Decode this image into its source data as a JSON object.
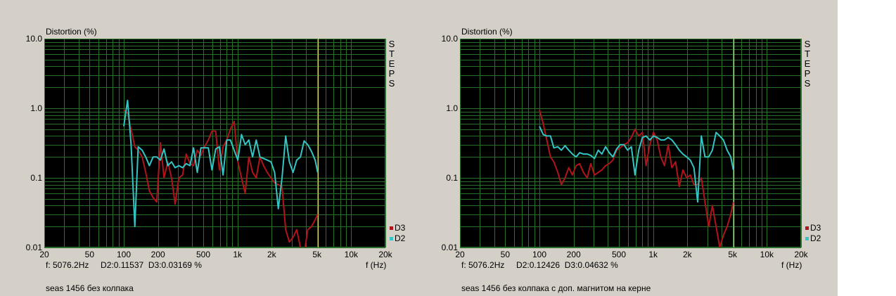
{
  "colors": {
    "panel_bg": "#d4d0c8",
    "plot_bg": "#000000",
    "grid": "#2a6f2a",
    "d3": "#b0141a",
    "d2": "#35c4c4",
    "marker": "#d4d46a"
  },
  "steps_label": "STEPS",
  "chart_data": [
    {
      "type": "line",
      "ylabel": "Distortion (%)",
      "xlabel": "f (Hz)",
      "x_scale": "log",
      "y_scale": "log",
      "xlim": [
        20,
        20000
      ],
      "ylim": [
        0.01,
        10.0
      ],
      "x_ticks": [
        "20",
        "50",
        "100",
        "200",
        "500",
        "1k",
        "2k",
        "5k",
        "10k",
        "20k"
      ],
      "y_ticks": [
        "10.0",
        "1.0",
        "0.1",
        "0.01"
      ],
      "marker_x": 5076.2,
      "readout": "f: 5076.2Hz     D2:0.11537  D3:0.03169 %",
      "caption": "seas 1456 без колпака",
      "legend": [
        "D3",
        "D2"
      ],
      "series": [
        {
          "name": "D3",
          "x": [
            100,
            108,
            116,
            125,
            134,
            145,
            156,
            168,
            181,
            195,
            210,
            226,
            244,
            263,
            283,
            305,
            329,
            354,
            382,
            411,
            443,
            477,
            514,
            554,
            597,
            643,
            693,
            747,
            805,
            867,
            934,
            1007,
            1085,
            1169,
            1259,
            1357,
            1462,
            1575,
            1697,
            1828,
            1970,
            2122,
            2287,
            2464,
            2655,
            2860,
            3082,
            3320,
            3577,
            3854,
            4153,
            4474,
            4821,
            5076
          ],
          "y": [
            0.95,
            0.85,
            0.5,
            0.28,
            0.25,
            0.2,
            0.12,
            0.065,
            0.052,
            0.045,
            0.32,
            0.1,
            0.17,
            0.1,
            0.042,
            0.1,
            0.11,
            0.22,
            0.16,
            0.15,
            0.25,
            0.21,
            0.28,
            0.35,
            0.47,
            0.47,
            0.13,
            0.28,
            0.35,
            0.5,
            0.65,
            0.17,
            0.1,
            0.06,
            0.2,
            0.12,
            0.1,
            0.2,
            0.15,
            0.12,
            0.1,
            0.085,
            0.08,
            0.075,
            0.018,
            0.012,
            0.014,
            0.018,
            0.01,
            0.008,
            0.018,
            0.02,
            0.025,
            0.03
          ]
        },
        {
          "name": "D2",
          "x": [
            100,
            108,
            116,
            125,
            134,
            145,
            156,
            168,
            181,
            195,
            210,
            226,
            244,
            263,
            283,
            305,
            329,
            354,
            382,
            411,
            443,
            477,
            514,
            554,
            597,
            643,
            693,
            747,
            805,
            867,
            934,
            1007,
            1085,
            1169,
            1259,
            1357,
            1462,
            1575,
            1697,
            1828,
            1970,
            2122,
            2287,
            2464,
            2655,
            2860,
            3082,
            3320,
            3577,
            3854,
            4153,
            4474,
            4821,
            5076
          ],
          "y": [
            0.55,
            1.3,
            0.3,
            0.02,
            0.28,
            0.25,
            0.2,
            0.15,
            0.2,
            0.2,
            0.18,
            0.26,
            0.15,
            0.17,
            0.14,
            0.15,
            0.14,
            0.16,
            0.15,
            0.27,
            0.12,
            0.27,
            0.27,
            0.27,
            0.13,
            0.26,
            0.28,
            0.11,
            0.35,
            0.35,
            0.25,
            0.18,
            0.42,
            0.3,
            0.35,
            0.2,
            0.35,
            0.2,
            0.19,
            0.18,
            0.17,
            0.12,
            0.036,
            0.1,
            0.4,
            0.17,
            0.12,
            0.18,
            0.2,
            0.34,
            0.3,
            0.24,
            0.18,
            0.12
          ]
        }
      ]
    },
    {
      "type": "line",
      "ylabel": "Distortion (%)",
      "xlabel": "f (Hz)",
      "x_scale": "log",
      "y_scale": "log",
      "xlim": [
        20,
        20000
      ],
      "ylim": [
        0.01,
        10.0
      ],
      "x_ticks": [
        "20",
        "50",
        "100",
        "200",
        "500",
        "1k",
        "2k",
        "5k",
        "10k",
        "20k"
      ],
      "y_ticks": [
        "10.0",
        "1.0",
        "0.1",
        "0.01"
      ],
      "marker_x": 5076.2,
      "readout": "f: 5076.2Hz     D2:0.12426  D3:0.04632 %",
      "caption": "seas 1456 без колпака с доп. магнитом на керне",
      "legend": [
        "D3",
        "D2"
      ],
      "series": [
        {
          "name": "D3",
          "x": [
            100,
            108,
            116,
            125,
            134,
            145,
            156,
            168,
            181,
            195,
            210,
            226,
            244,
            263,
            283,
            305,
            329,
            354,
            382,
            411,
            443,
            477,
            514,
            554,
            597,
            643,
            693,
            747,
            805,
            867,
            934,
            1007,
            1085,
            1169,
            1259,
            1357,
            1462,
            1575,
            1697,
            1828,
            1970,
            2122,
            2287,
            2464,
            2655,
            2860,
            3082,
            3320,
            3577,
            3854,
            4153,
            4474,
            4821,
            5076
          ],
          "y": [
            0.95,
            0.6,
            0.35,
            0.2,
            0.17,
            0.12,
            0.08,
            0.1,
            0.14,
            0.11,
            0.15,
            0.16,
            0.12,
            0.1,
            0.16,
            0.11,
            0.12,
            0.13,
            0.15,
            0.16,
            0.18,
            0.25,
            0.27,
            0.3,
            0.32,
            0.38,
            0.5,
            0.4,
            0.45,
            0.15,
            0.3,
            0.45,
            0.35,
            0.2,
            0.15,
            0.3,
            0.14,
            0.17,
            0.075,
            0.13,
            0.1,
            0.11,
            0.08,
            0.08,
            0.1,
            0.045,
            0.02,
            0.04,
            0.02,
            0.01,
            0.015,
            0.02,
            0.03,
            0.045
          ]
        },
        {
          "name": "D2",
          "x": [
            100,
            108,
            116,
            125,
            134,
            145,
            156,
            168,
            181,
            195,
            210,
            226,
            244,
            263,
            283,
            305,
            329,
            354,
            382,
            411,
            443,
            477,
            514,
            554,
            597,
            643,
            693,
            747,
            805,
            867,
            934,
            1007,
            1085,
            1169,
            1259,
            1357,
            1462,
            1575,
            1697,
            1828,
            1970,
            2122,
            2287,
            2464,
            2655,
            2860,
            3082,
            3320,
            3577,
            3854,
            4153,
            4474,
            4821,
            5076
          ],
          "y": [
            0.55,
            0.42,
            0.4,
            0.4,
            0.27,
            0.28,
            0.25,
            0.29,
            0.25,
            0.22,
            0.2,
            0.23,
            0.22,
            0.22,
            0.21,
            0.19,
            0.25,
            0.22,
            0.28,
            0.23,
            0.2,
            0.26,
            0.3,
            0.3,
            0.25,
            0.28,
            0.11,
            0.25,
            0.38,
            0.4,
            0.35,
            0.4,
            0.38,
            0.35,
            0.35,
            0.38,
            0.35,
            0.3,
            0.25,
            0.22,
            0.2,
            0.18,
            0.14,
            0.045,
            0.4,
            0.2,
            0.2,
            0.25,
            0.45,
            0.4,
            0.35,
            0.25,
            0.2,
            0.13
          ]
        }
      ]
    }
  ]
}
